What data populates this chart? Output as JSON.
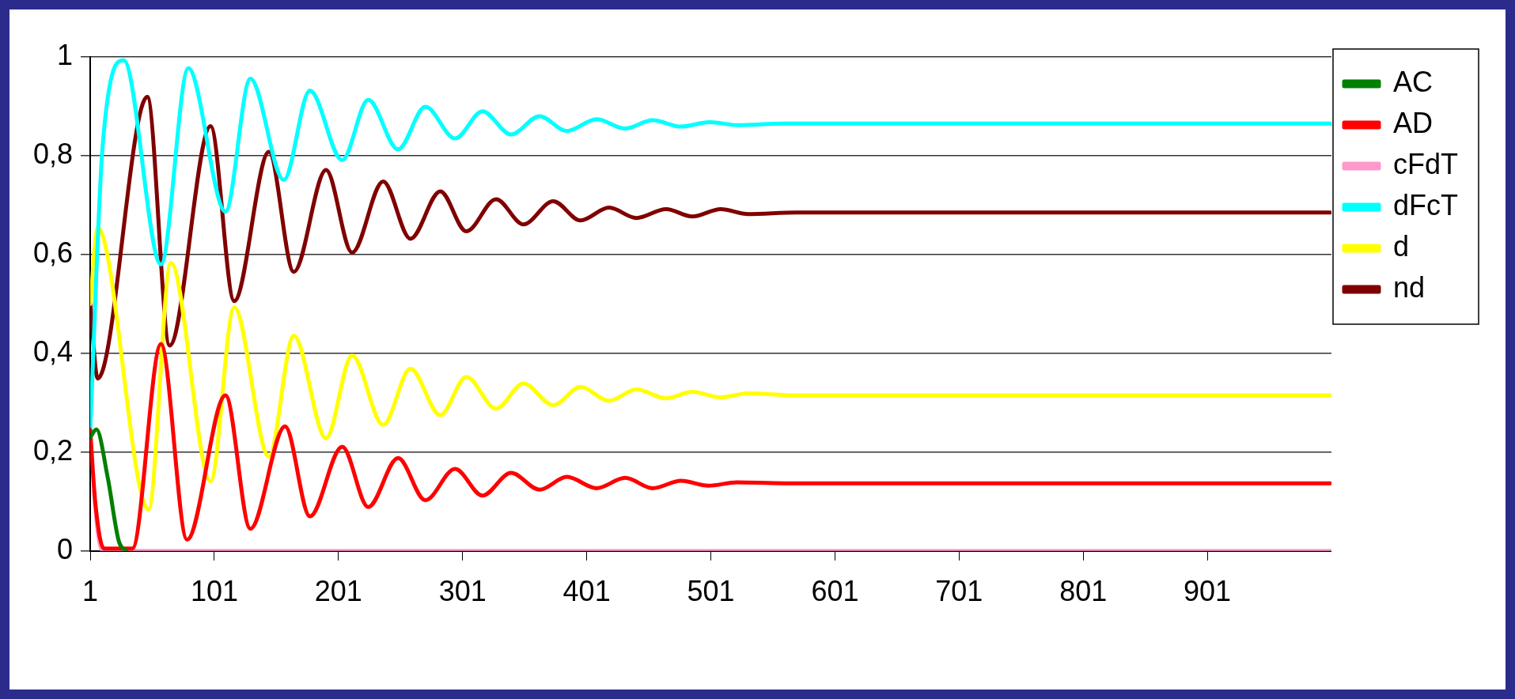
{
  "chart_data": {
    "type": "line",
    "xlim": [
      1,
      1001
    ],
    "xticks": [
      1,
      101,
      201,
      301,
      401,
      501,
      601,
      701,
      801,
      901
    ],
    "ylim": [
      0,
      1
    ],
    "yticks": [
      0,
      {
        "value": 0.2,
        "label": "0,2"
      },
      {
        "value": 0.4,
        "label": "0,4"
      },
      {
        "value": 0.6,
        "label": "0,6"
      },
      {
        "value": 0.8,
        "label": "0,8"
      },
      1
    ],
    "grid": "y",
    "legend": "right",
    "marker": "none",
    "series": [
      {
        "name": "AC",
        "color": "#008000",
        "x": [
          1,
          6,
          15,
          24,
          30
        ],
        "values": [
          0.23,
          0.246,
          0.15,
          0.02,
          0
        ]
      },
      {
        "name": "AD",
        "color": "#ff0000",
        "x": [
          1,
          5,
          12,
          35,
          58,
          79,
          110,
          130,
          158,
          178,
          204,
          225,
          249,
          271,
          295,
          317,
          340,
          363,
          385,
          409,
          432,
          454,
          477,
          499,
          522,
          560,
          1000
        ],
        "values": [
          0.245,
          0.1,
          0.005,
          0.005,
          0.419,
          0.023,
          0.315,
          0.045,
          0.252,
          0.07,
          0.211,
          0.089,
          0.188,
          0.103,
          0.166,
          0.112,
          0.158,
          0.124,
          0.15,
          0.127,
          0.148,
          0.127,
          0.142,
          0.132,
          0.139,
          0.137,
          0.137
        ]
      },
      {
        "name": "cFdT",
        "color": "#ff99cc",
        "x": [
          4,
          7,
          11,
          1000
        ],
        "values": [
          0.12,
          0.04,
          0,
          0
        ]
      },
      {
        "name": "dFcT",
        "color": "#00ffff",
        "x": [
          1,
          11,
          28,
          58,
          80,
          110,
          130,
          157,
          178,
          204,
          225,
          249,
          271,
          295,
          317,
          340,
          363,
          385,
          409,
          432,
          454,
          477,
          500,
          523,
          560,
          1000
        ],
        "values": [
          0.245,
          0.82,
          0.993,
          0.58,
          0.977,
          0.687,
          0.956,
          0.751,
          0.932,
          0.791,
          0.913,
          0.813,
          0.899,
          0.835,
          0.89,
          0.843,
          0.88,
          0.85,
          0.874,
          0.855,
          0.872,
          0.859,
          0.868,
          0.862,
          0.865,
          0.865
        ]
      },
      {
        "name": "d",
        "color": "#ffff00",
        "x": [
          1,
          7,
          48,
          66,
          98,
          117,
          145,
          165,
          191,
          212,
          237,
          259,
          283,
          304,
          328,
          350,
          374,
          396,
          419,
          441,
          465,
          486,
          509,
          531,
          570,
          1000
        ],
        "values": [
          0.5,
          0.654,
          0.084,
          0.583,
          0.141,
          0.493,
          0.191,
          0.436,
          0.228,
          0.396,
          0.255,
          0.369,
          0.275,
          0.352,
          0.288,
          0.339,
          0.295,
          0.332,
          0.304,
          0.327,
          0.309,
          0.322,
          0.311,
          0.319,
          0.315,
          0.315
        ]
      },
      {
        "name": "nd",
        "color": "#800000",
        "x": [
          1,
          7,
          47,
          65,
          98,
          117,
          145,
          165,
          191,
          212,
          237,
          259,
          283,
          304,
          328,
          350,
          374,
          396,
          419,
          441,
          465,
          486,
          509,
          531,
          570,
          1000
        ],
        "values": [
          0.503,
          0.349,
          0.919,
          0.416,
          0.86,
          0.506,
          0.808,
          0.565,
          0.771,
          0.604,
          0.748,
          0.632,
          0.728,
          0.647,
          0.712,
          0.661,
          0.708,
          0.669,
          0.695,
          0.674,
          0.692,
          0.677,
          0.692,
          0.682,
          0.685,
          0.685
        ]
      }
    ]
  }
}
